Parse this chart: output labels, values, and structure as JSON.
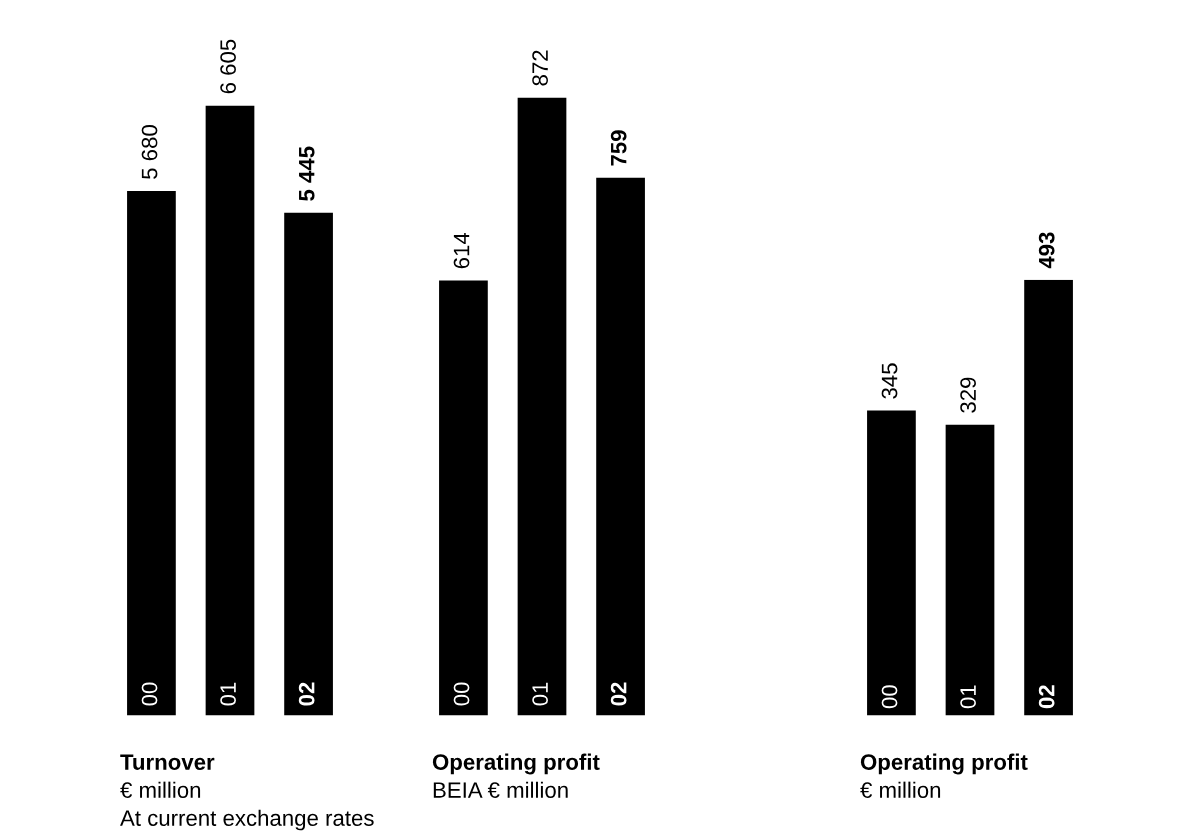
{
  "chart_data": [
    {
      "type": "bar",
      "title": "Turnover",
      "subtitle": "€ million",
      "categories": [
        "00",
        "01",
        "02"
      ],
      "values": [
        5680,
        6605,
        5445
      ],
      "color": "#000000",
      "data_labels": true,
      "annotations": [
        "At current exchange rates"
      ]
    },
    {
      "type": "bar",
      "title": "Operating profit",
      "subtitle": "BEIA € million",
      "categories": [
        "00",
        "01",
        "02"
      ],
      "values": [
        614,
        872,
        759
      ],
      "color": "#000000",
      "data_labels": true
    },
    {
      "type": "bar",
      "title": "Operating profit",
      "subtitle": "€ million",
      "categories": [
        "00",
        "01",
        "02"
      ],
      "values": [
        345,
        329,
        493
      ],
      "color": "#000000",
      "data_labels": true
    }
  ]
}
